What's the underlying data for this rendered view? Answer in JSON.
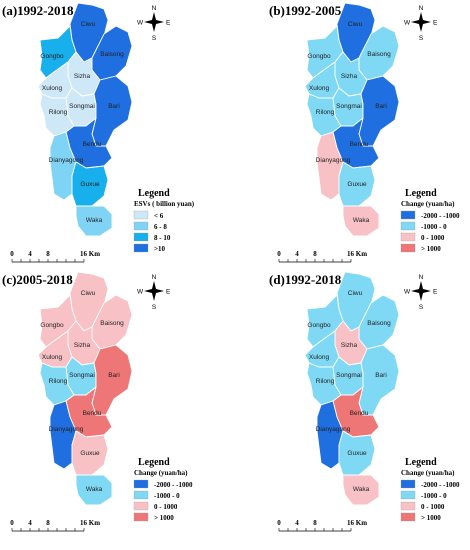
{
  "colors": {
    "c1": "#cfe8f7",
    "c2": "#7fd3f4",
    "c3": "#17b0ec",
    "c4": "#1f6fe0",
    "neg2000": "#1f6fe0",
    "neg1000": "#7fd8f4",
    "pos1000": "#f7c1c6",
    "pos_gt": "#ee7676"
  },
  "compass": {
    "n": "N",
    "s": "S",
    "e": "E",
    "w": "W"
  },
  "scale": {
    "t0": "0",
    "t1": "4",
    "t2": "8",
    "t3": "16 Km"
  },
  "panels": [
    {
      "title": "(a)1992-2018",
      "legend_title": "Legend",
      "legend_subtitle": "ESVs ( billion yuan)",
      "legend_items": [
        {
          "label": "< 6",
          "color": "c1"
        },
        {
          "label": "6 - 8",
          "color": "c2"
        },
        {
          "label": "8 - 10",
          "color": "c3"
        },
        {
          "label": ">10",
          "color": "c4"
        }
      ],
      "regions": {
        "Ciwu": "c4",
        "Baisong": "c4",
        "Gongbo": "c3",
        "Sizha": "c1",
        "Xulong": "c1",
        "Songmai": "c1",
        "Rilong": "c1",
        "Bari": "c4",
        "Bendu": "c4",
        "Dianyagong": "c2",
        "Guxue": "c3",
        "Waka": "c2"
      }
    },
    {
      "title": "(b)1992-2005",
      "legend_title": "Legend",
      "legend_subtitle": "Change (yuan/ha)",
      "legend_items": [
        {
          "label": "-2000 - -1000",
          "color": "neg2000"
        },
        {
          "label": "-1000 - 0",
          "color": "neg1000"
        },
        {
          "label": "0 - 1000",
          "color": "pos1000"
        },
        {
          "label": "> 1000",
          "color": "pos_gt"
        }
      ],
      "regions": {
        "Ciwu": "neg2000",
        "Baisong": "neg1000",
        "Gongbo": "neg1000",
        "Sizha": "neg1000",
        "Xulong": "neg1000",
        "Songmai": "neg1000",
        "Rilong": "neg1000",
        "Bari": "neg2000",
        "Bendu": "neg2000",
        "Dianyagong": "pos1000",
        "Guxue": "neg1000",
        "Waka": "pos1000"
      }
    },
    {
      "title": "(c)2005-2018",
      "legend_title": "Legend",
      "legend_subtitle": "Change (yuan/ha)",
      "legend_items": [
        {
          "label": "-2000 - -1000",
          "color": "neg2000"
        },
        {
          "label": "-1000 - 0",
          "color": "neg1000"
        },
        {
          "label": "0 - 1000",
          "color": "pos1000"
        },
        {
          "label": "> 1000",
          "color": "pos_gt"
        }
      ],
      "regions": {
        "Ciwu": "pos1000",
        "Baisong": "pos1000",
        "Gongbo": "pos1000",
        "Sizha": "pos1000",
        "Xulong": "pos1000",
        "Songmai": "neg1000",
        "Rilong": "neg1000",
        "Bari": "pos_gt",
        "Bendu": "pos_gt",
        "Dianyagong": "neg2000",
        "Guxue": "pos1000",
        "Waka": "neg1000"
      }
    },
    {
      "title": "(d)1992-2018",
      "legend_title": "Legend",
      "legend_subtitle": "Change (yuan/ha)",
      "legend_items": [
        {
          "label": "-2000 - -1000",
          "color": "neg2000"
        },
        {
          "label": "-1000 - 0",
          "color": "neg1000"
        },
        {
          "label": "0 - 1000",
          "color": "pos1000"
        },
        {
          "label": "> 1000",
          "color": "pos_gt"
        }
      ],
      "regions": {
        "Ciwu": "neg1000",
        "Baisong": "neg1000",
        "Gongbo": "neg1000",
        "Sizha": "pos1000",
        "Xulong": "neg1000",
        "Songmai": "neg1000",
        "Rilong": "neg1000",
        "Bari": "neg1000",
        "Bendu": "pos_gt",
        "Dianyagong": "neg2000",
        "Guxue": "neg1000",
        "Waka": "pos1000"
      }
    }
  ]
}
